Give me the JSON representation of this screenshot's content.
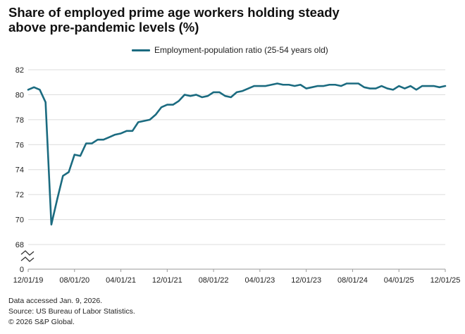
{
  "chart_data": {
    "type": "line",
    "title": "Share of employed prime age workers holding steady above pre-pandemic levels (%)",
    "title_lines": [
      "Share of employed prime age workers holding steady",
      "above pre-pandemic levels (%)"
    ],
    "xlabel": "",
    "ylabel": "",
    "ylim": [
      68,
      82
    ],
    "yticks": [
      "82",
      "80",
      "78",
      "76",
      "74",
      "72",
      "70",
      "68",
      "0"
    ],
    "xticks": [
      "12/01/19",
      "08/01/20",
      "04/01/21",
      "12/01/21",
      "08/01/22",
      "04/01/23",
      "12/01/23",
      "08/01/24",
      "04/01/25",
      "12/01/25"
    ],
    "axis_break": true,
    "legend_position": "top",
    "series": [
      {
        "name": "Employment-population ratio (25-54 years old)",
        "color": "#1b6b80",
        "values": [
          80.4,
          80.6,
          80.4,
          79.4,
          69.6,
          71.6,
          73.5,
          73.8,
          75.2,
          75.1,
          76.1,
          76.1,
          76.4,
          76.4,
          76.6,
          76.8,
          76.9,
          77.1,
          77.1,
          77.8,
          77.9,
          78.0,
          78.4,
          79.0,
          79.2,
          79.2,
          79.5,
          80.0,
          79.9,
          80.0,
          79.8,
          79.9,
          80.2,
          80.2,
          79.9,
          79.8,
          80.2,
          80.3,
          80.5,
          80.7,
          80.7,
          80.7,
          80.8,
          80.9,
          80.8,
          80.8,
          80.7,
          80.8,
          80.5,
          80.6,
          80.7,
          80.7,
          80.8,
          80.8,
          80.7,
          80.9,
          80.9,
          80.9,
          80.6,
          80.5,
          80.5,
          80.7,
          80.5,
          80.4,
          80.7,
          80.5,
          80.7,
          80.4,
          80.7,
          80.7,
          80.7,
          80.6,
          80.7
        ]
      }
    ]
  },
  "footer": {
    "accessed": "Data accessed Jan. 9, 2026.",
    "source": "Source: US Bureau of Labor Statistics.",
    "copyright": "© 2026 S&P Global."
  }
}
